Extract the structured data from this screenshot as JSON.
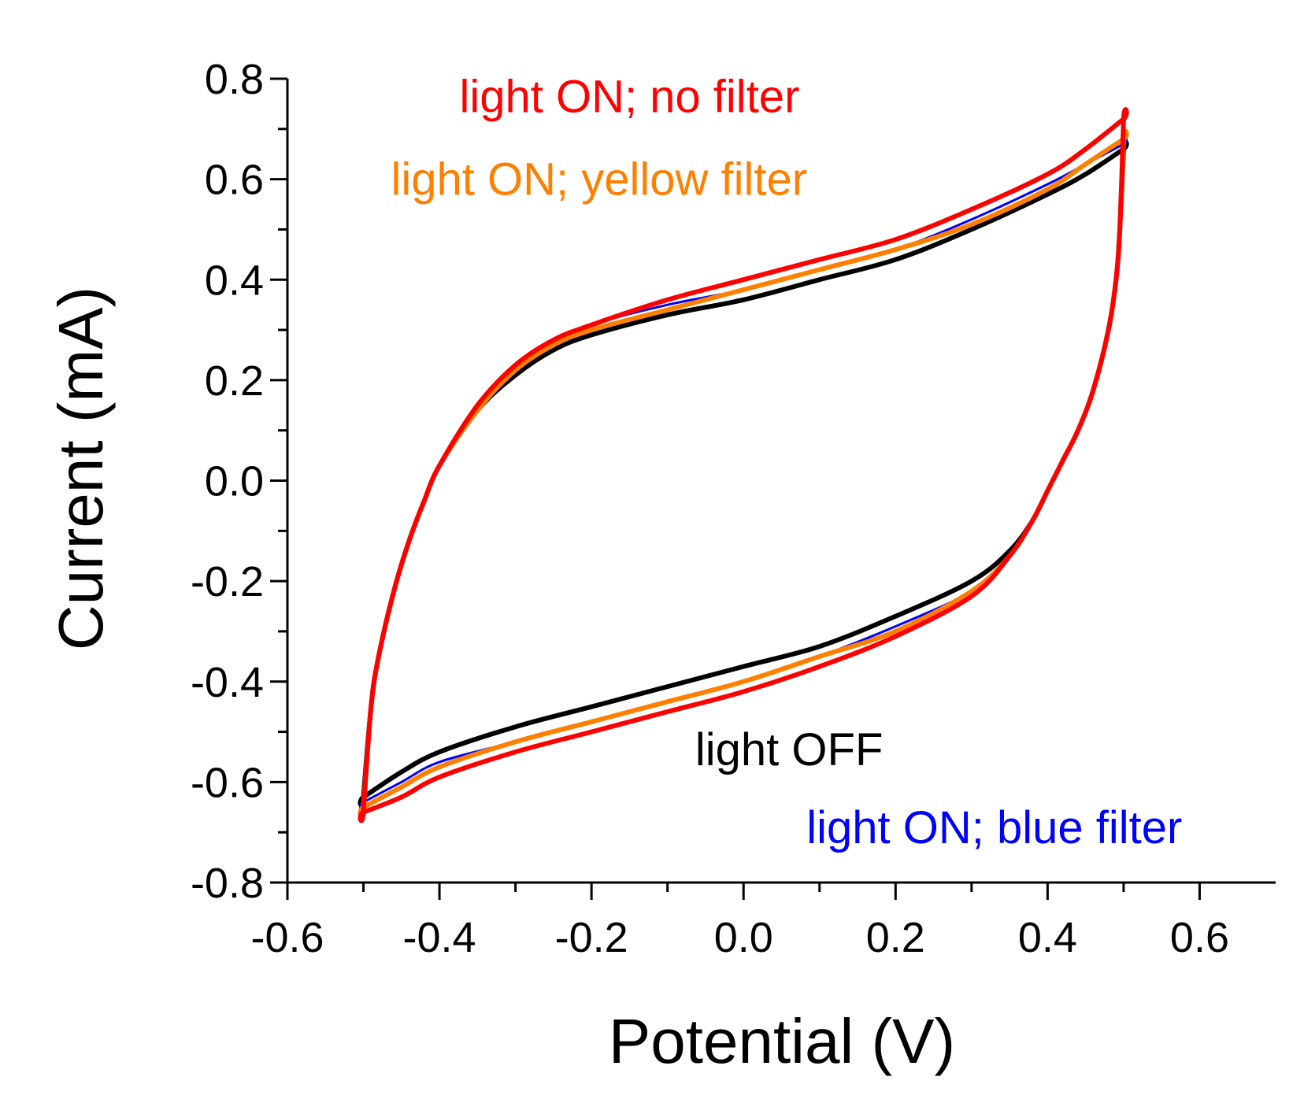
{
  "chart_data": {
    "type": "line",
    "title": "",
    "xlabel": "Potential (V)",
    "ylabel": "Current (mA)",
    "xlim": [
      -0.6,
      0.7
    ],
    "ylim": [
      -0.8,
      0.8
    ],
    "xticks": [
      -0.6,
      -0.4,
      -0.2,
      0.0,
      0.2,
      0.4,
      0.6
    ],
    "xtick_labels": [
      "-0.6",
      "-0.4",
      "-0.2",
      "0.0",
      "0.2",
      "0.4",
      "0.6"
    ],
    "yticks": [
      0.8,
      0.6,
      0.4,
      0.2,
      0.0,
      -0.2,
      -0.4,
      -0.6,
      -0.8
    ],
    "ytick_labels": [
      "0.8",
      "0.6",
      "0.4",
      "0.2",
      "0.0",
      "-0.2",
      "-0.4",
      "-0.6",
      "-0.8"
    ],
    "grid": false,
    "legend": "inline annotations",
    "series": [
      {
        "name": "light OFF",
        "color": "#000000",
        "upper_x": [
          -0.5,
          -0.49,
          -0.48,
          -0.46,
          -0.44,
          -0.42,
          -0.4,
          -0.35,
          -0.3,
          -0.25,
          -0.2,
          -0.1,
          0.0,
          0.1,
          0.2,
          0.3,
          0.4,
          0.45,
          0.5
        ],
        "upper_y": [
          -0.63,
          -0.45,
          -0.35,
          -0.22,
          -0.12,
          -0.04,
          0.03,
          0.14,
          0.21,
          0.26,
          0.29,
          0.33,
          0.36,
          0.4,
          0.44,
          0.5,
          0.57,
          0.61,
          0.66
        ],
        "lower_x": [
          0.5,
          0.495,
          0.49,
          0.48,
          0.46,
          0.44,
          0.42,
          0.4,
          0.38,
          0.35,
          0.3,
          0.2,
          0.1,
          0.0,
          -0.1,
          -0.2,
          -0.3,
          -0.4,
          -0.45,
          -0.5
        ],
        "lower_y": [
          0.66,
          0.5,
          0.4,
          0.3,
          0.18,
          0.1,
          0.04,
          -0.02,
          -0.08,
          -0.14,
          -0.2,
          -0.27,
          -0.33,
          -0.37,
          -0.41,
          -0.45,
          -0.49,
          -0.54,
          -0.58,
          -0.63
        ]
      },
      {
        "name": "light ON; blue filter",
        "color": "#0000ff",
        "upper_x": [
          -0.5,
          -0.49,
          -0.48,
          -0.46,
          -0.44,
          -0.42,
          -0.4,
          -0.35,
          -0.3,
          -0.25,
          -0.2,
          -0.1,
          0.0,
          0.1,
          0.2,
          0.3,
          0.4,
          0.45,
          0.5
        ],
        "upper_y": [
          -0.64,
          -0.45,
          -0.35,
          -0.22,
          -0.12,
          -0.04,
          0.03,
          0.15,
          0.22,
          0.27,
          0.31,
          0.35,
          0.38,
          0.42,
          0.46,
          0.52,
          0.59,
          0.63,
          0.67
        ],
        "lower_x": [
          0.5,
          0.495,
          0.49,
          0.48,
          0.46,
          0.44,
          0.42,
          0.4,
          0.38,
          0.35,
          0.3,
          0.2,
          0.1,
          0.0,
          -0.1,
          -0.2,
          -0.3,
          -0.4,
          -0.45,
          -0.5
        ],
        "lower_y": [
          0.67,
          0.5,
          0.4,
          0.3,
          0.18,
          0.1,
          0.04,
          -0.02,
          -0.08,
          -0.15,
          -0.22,
          -0.29,
          -0.35,
          -0.4,
          -0.44,
          -0.48,
          -0.52,
          -0.56,
          -0.6,
          -0.64
        ]
      },
      {
        "name": "light ON; yellow filter",
        "color": "#ff8000",
        "upper_x": [
          -0.5,
          -0.49,
          -0.48,
          -0.46,
          -0.44,
          -0.42,
          -0.4,
          -0.35,
          -0.3,
          -0.25,
          -0.2,
          -0.1,
          0.0,
          0.1,
          0.2,
          0.3,
          0.4,
          0.45,
          0.5
        ],
        "upper_y": [
          -0.65,
          -0.45,
          -0.35,
          -0.22,
          -0.12,
          -0.04,
          0.03,
          0.14,
          0.22,
          0.27,
          0.3,
          0.34,
          0.38,
          0.42,
          0.46,
          0.51,
          0.58,
          0.63,
          0.68
        ],
        "lower_x": [
          0.5,
          0.495,
          0.49,
          0.48,
          0.46,
          0.44,
          0.42,
          0.4,
          0.38,
          0.35,
          0.3,
          0.2,
          0.1,
          0.0,
          -0.1,
          -0.2,
          -0.3,
          -0.4,
          -0.45,
          -0.5
        ],
        "lower_y": [
          0.68,
          0.5,
          0.4,
          0.3,
          0.18,
          0.1,
          0.04,
          -0.02,
          -0.08,
          -0.15,
          -0.22,
          -0.3,
          -0.35,
          -0.4,
          -0.44,
          -0.48,
          -0.52,
          -0.57,
          -0.61,
          -0.65
        ]
      },
      {
        "name": "light ON; no filter",
        "color": "#ff0000",
        "upper_x": [
          -0.5,
          -0.49,
          -0.48,
          -0.46,
          -0.44,
          -0.42,
          -0.4,
          -0.35,
          -0.3,
          -0.25,
          -0.2,
          -0.1,
          0.0,
          0.1,
          0.2,
          0.3,
          0.4,
          0.45,
          0.5
        ],
        "upper_y": [
          -0.66,
          -0.45,
          -0.35,
          -0.22,
          -0.12,
          -0.04,
          0.03,
          0.15,
          0.23,
          0.28,
          0.31,
          0.36,
          0.4,
          0.44,
          0.48,
          0.54,
          0.61,
          0.66,
          0.72
        ],
        "lower_x": [
          0.5,
          0.495,
          0.49,
          0.48,
          0.46,
          0.44,
          0.42,
          0.4,
          0.38,
          0.35,
          0.3,
          0.2,
          0.1,
          0.0,
          -0.1,
          -0.2,
          -0.3,
          -0.4,
          -0.45,
          -0.5
        ],
        "lower_y": [
          0.72,
          0.5,
          0.4,
          0.3,
          0.18,
          0.1,
          0.04,
          -0.02,
          -0.08,
          -0.15,
          -0.23,
          -0.31,
          -0.37,
          -0.42,
          -0.46,
          -0.5,
          -0.54,
          -0.59,
          -0.63,
          -0.66
        ]
      }
    ],
    "annotations": [
      {
        "text": "light ON; no filter",
        "color": "#ff0000",
        "x": -0.15,
        "y": 0.765
      },
      {
        "text": "light ON; yellow filter",
        "color": "#ff8000",
        "x": -0.19,
        "y": 0.6
      },
      {
        "text": "light OFF",
        "color": "#000000",
        "x": 0.06,
        "y": -0.535
      },
      {
        "text": "light ON; blue filter",
        "color": "#0000ff",
        "x": 0.33,
        "y": -0.69
      }
    ]
  }
}
